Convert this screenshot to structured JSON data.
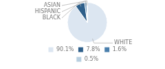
{
  "chart_data": {
    "type": "pie",
    "categories": [
      "WHITE",
      "BLACK",
      "HISPANIC",
      "ASIAN"
    ],
    "values": [
      90.1,
      7.8,
      1.6,
      0.5
    ],
    "value_labels": [
      "90.1%",
      "7.8%",
      "1.6%",
      "0.5%"
    ],
    "colors": [
      "#dce6f1",
      "#2e5f8a",
      "#4a7fac",
      "#b8cfe0"
    ],
    "legend": "bottom"
  }
}
